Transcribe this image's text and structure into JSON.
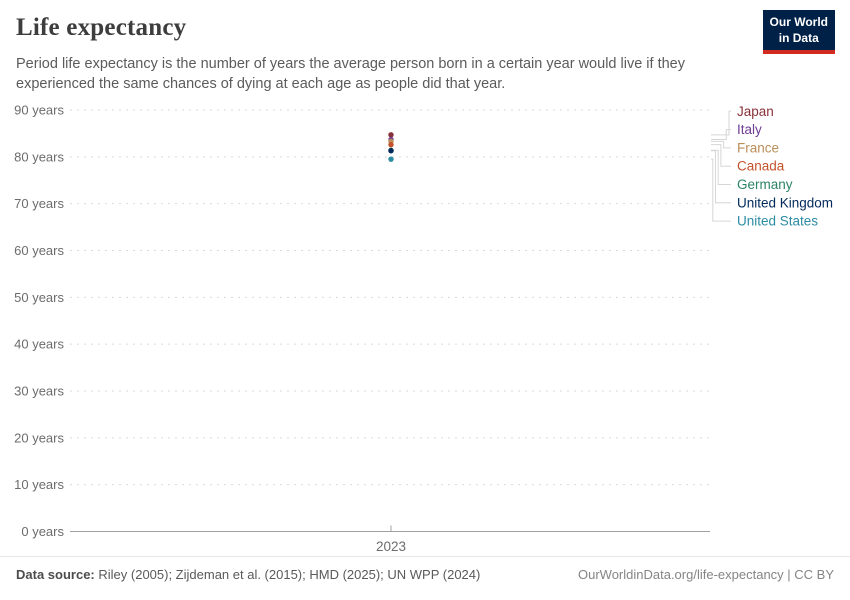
{
  "header": {
    "title": "Life expectancy",
    "subtitle": "Period life expectancy is the number of years the average person born in a certain year would live if they experienced the same chances of dying at each age as people did that year."
  },
  "logo": {
    "line1": "Our World",
    "line2": "in Data",
    "bg_color": "#002147",
    "accent_color": "#d12b1f"
  },
  "chart_data": {
    "type": "scatter",
    "title": "Life expectancy",
    "x": [
      2023
    ],
    "x_tick_label": "2023",
    "ylim": [
      0,
      90
    ],
    "ytick_step": 10,
    "ytick_suffix": " years",
    "grid": true,
    "legend_position": "right",
    "series": [
      {
        "name": "Japan",
        "value": 84.7,
        "color": "#883039"
      },
      {
        "name": "Italy",
        "value": 83.7,
        "color": "#6D3E91"
      },
      {
        "name": "France",
        "value": 83.3,
        "color": "#BC8E5A"
      },
      {
        "name": "Canada",
        "value": 82.6,
        "color": "#C4522D"
      },
      {
        "name": "Germany",
        "value": 81.4,
        "color": "#2C8465"
      },
      {
        "name": "United Kingdom",
        "value": 81.3,
        "color": "#00295B"
      },
      {
        "name": "United States",
        "value": 79.5,
        "color": "#2C8CA3"
      }
    ]
  },
  "footer": {
    "data_source_label": "Data source:",
    "data_source_text": "Riley (2005); Zijdeman et al. (2015); HMD (2025); UN WPP (2024)",
    "attribution": "OurWorldinData.org/life-expectancy | CC BY"
  }
}
